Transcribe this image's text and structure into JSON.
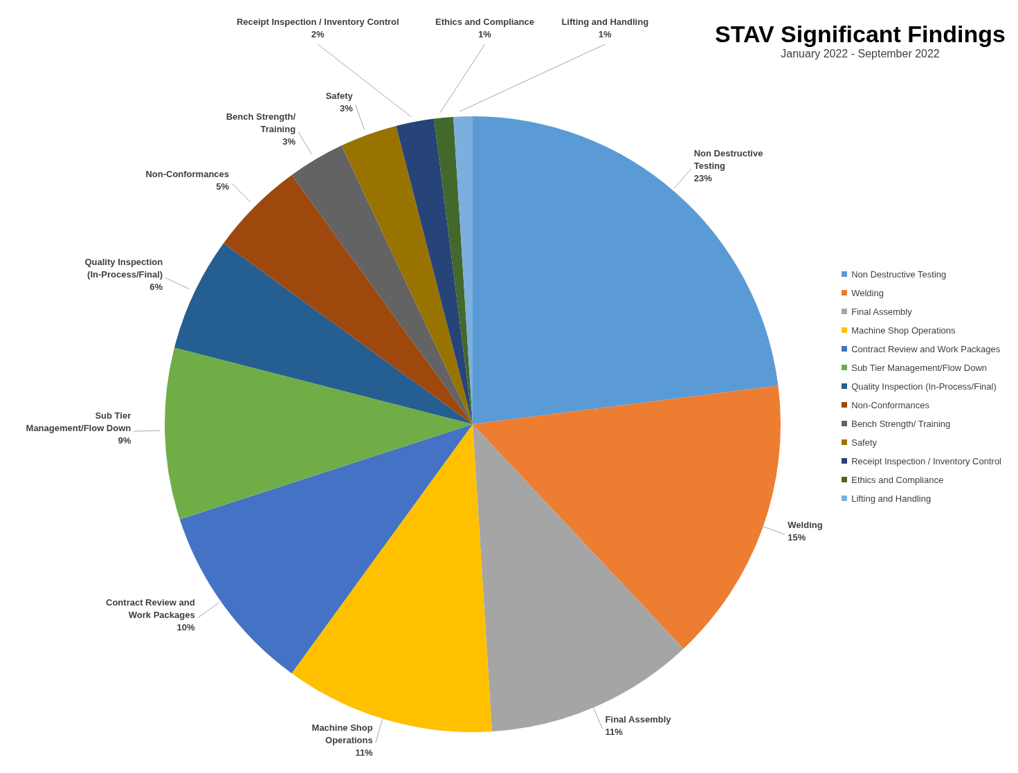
{
  "chart_data": {
    "type": "pie",
    "title": "STAV Significant Findings",
    "subtitle": "January 2022 - September 2022",
    "categories": [
      "Non Destructive Testing",
      "Welding",
      "Final Assembly",
      "Machine Shop Operations",
      "Contract Review and Work Packages",
      "Sub Tier Management/Flow Down",
      "Quality Inspection (In-Process/Final)",
      "Non-Conformances",
      "Bench Strength/ Training",
      "Safety",
      "Receipt Inspection / Inventory Control",
      "Ethics and Compliance",
      "Lifting and Handling"
    ],
    "values": [
      23,
      15,
      11,
      11,
      10,
      9,
      6,
      5,
      3,
      3,
      2,
      1,
      1
    ],
    "colors": [
      "#5b9bd5",
      "#ed7d31",
      "#a5a5a5",
      "#ffc000",
      "#4472c4",
      "#70ad47",
      "#255e91",
      "#9e480e",
      "#636363",
      "#997300",
      "#264478",
      "#43682b",
      "#7cafdd"
    ],
    "value_labels": [
      "23%",
      "15%",
      "11%",
      "11%",
      "10%",
      "9%",
      "6%",
      "5%",
      "3%",
      "3%",
      "2%",
      "1%",
      "1%"
    ],
    "legend": "right"
  }
}
